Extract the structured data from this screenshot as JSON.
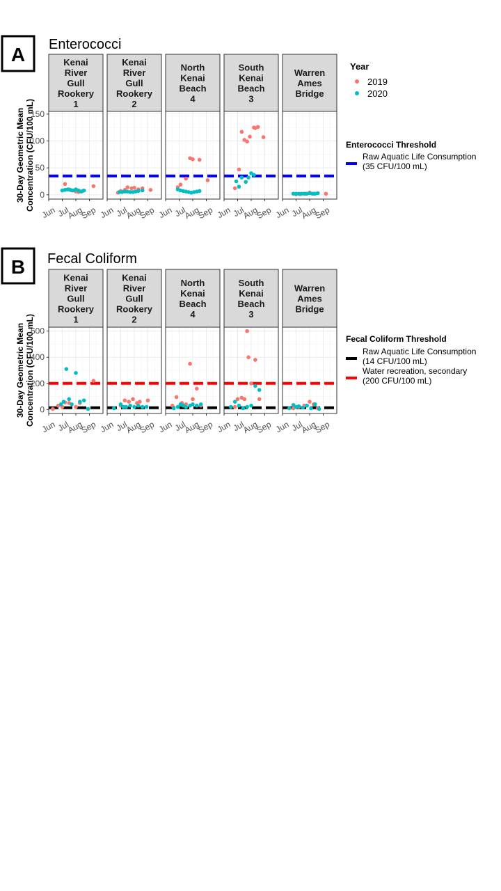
{
  "colors": {
    "y2019": "#F8766D",
    "y2020": "#00BFC4",
    "threshold_blue": "#0000FF",
    "threshold_red": "#FF0000",
    "threshold_black": "#000000",
    "strip_fill": "#D9D9D9",
    "grid": "#EBEBEB"
  },
  "y_label": [
    "30-Day Geometric Mean",
    "Concentration (CFU/100 mL)"
  ],
  "year_legend": {
    "title": "Year",
    "items": [
      {
        "label": "2019",
        "color_key": "y2019"
      },
      {
        "label": "2020",
        "color_key": "y2020"
      }
    ]
  },
  "chart_data": [
    {
      "type": "scatter",
      "badge": "A",
      "title": "Enterococci",
      "ylim": [
        -8,
        155
      ],
      "yticks": [
        0,
        50,
        100,
        150
      ],
      "xlim": [
        0,
        4
      ],
      "xticks": [
        {
          "label": "Jun",
          "x": 0
        },
        {
          "label": "Jul",
          "x": 1
        },
        {
          "label": "Aug",
          "x": 2
        },
        {
          "label": "Sep",
          "x": 3
        }
      ],
      "grid": true,
      "legend_position": "right",
      "threshold_legend": {
        "title": "Enterococci Threshold",
        "items": [
          {
            "line1": "Raw Aquatic Life Consumption",
            "line2": "(35 CFU/100 mL)",
            "value": 35,
            "color_key": "threshold_blue"
          }
        ]
      },
      "panels": [
        {
          "strip": [
            "Kenai",
            "River",
            "Gull",
            "Rookery",
            "1"
          ],
          "series": [
            {
              "name": "2019",
              "points": [
                [
                  1.2,
                  20
                ],
                [
                  1.5,
                  10
                ],
                [
                  1.7,
                  8
                ],
                [
                  2.0,
                  6
                ],
                [
                  2.2,
                  5
                ],
                [
                  2.5,
                  7
                ],
                [
                  3.3,
                  16
                ]
              ]
            },
            {
              "name": "2020",
              "points": [
                [
                  1.0,
                  8
                ],
                [
                  1.2,
                  9
                ],
                [
                  1.4,
                  10
                ],
                [
                  1.6,
                  9
                ],
                [
                  1.8,
                  8
                ],
                [
                  2.0,
                  10
                ],
                [
                  2.2,
                  8
                ],
                [
                  2.4,
                  6
                ],
                [
                  2.6,
                  8
                ]
              ]
            }
          ]
        },
        {
          "strip": [
            "Kenai",
            "River",
            "Gull",
            "Rookery",
            "2"
          ],
          "series": [
            {
              "name": "2019",
              "points": [
                [
                  0.8,
                  4
                ],
                [
                  1.0,
                  7
                ],
                [
                  1.3,
                  9
                ],
                [
                  1.5,
                  14
                ],
                [
                  1.8,
                  12
                ],
                [
                  2.0,
                  13
                ],
                [
                  2.3,
                  10
                ],
                [
                  2.6,
                  12
                ],
                [
                  3.2,
                  9
                ]
              ]
            },
            {
              "name": "2020",
              "points": [
                [
                  0.9,
                  5
                ],
                [
                  1.1,
                  5
                ],
                [
                  1.3,
                  6
                ],
                [
                  1.5,
                  6
                ],
                [
                  1.7,
                  5
                ],
                [
                  1.9,
                  5
                ],
                [
                  2.1,
                  6
                ],
                [
                  2.3,
                  7
                ],
                [
                  2.6,
                  8
                ]
              ]
            }
          ]
        },
        {
          "strip": [
            "North",
            "Kenai",
            "Beach",
            "4"
          ],
          "series": [
            {
              "name": "2019",
              "points": [
                [
                  0.9,
                  14
                ],
                [
                  1.1,
                  19
                ],
                [
                  1.5,
                  30
                ],
                [
                  1.8,
                  68
                ],
                [
                  2.0,
                  66
                ],
                [
                  2.5,
                  65
                ],
                [
                  3.1,
                  27
                ]
              ]
            },
            {
              "name": "2020",
              "points": [
                [
                  0.9,
                  10
                ],
                [
                  1.1,
                  8
                ],
                [
                  1.3,
                  7
                ],
                [
                  1.5,
                  6
                ],
                [
                  1.7,
                  5
                ],
                [
                  1.9,
                  4
                ],
                [
                  2.1,
                  5
                ],
                [
                  2.3,
                  6
                ],
                [
                  2.5,
                  7
                ]
              ]
            }
          ]
        },
        {
          "strip": [
            "South",
            "Kenai",
            "Beach",
            "3"
          ],
          "series": [
            {
              "name": "2019",
              "points": [
                [
                  0.8,
                  12
                ],
                [
                  1.1,
                  47
                ],
                [
                  1.3,
                  117
                ],
                [
                  1.5,
                  102
                ],
                [
                  1.7,
                  99
                ],
                [
                  1.9,
                  108
                ],
                [
                  2.2,
                  125
                ],
                [
                  2.3,
                  124
                ],
                [
                  2.5,
                  126
                ],
                [
                  2.9,
                  107
                ]
              ]
            },
            {
              "name": "2020",
              "points": [
                [
                  0.9,
                  25
                ],
                [
                  1.1,
                  15
                ],
                [
                  1.3,
                  32
                ],
                [
                  1.6,
                  24
                ],
                [
                  1.8,
                  32
                ],
                [
                  2.0,
                  40
                ],
                [
                  2.2,
                  37
                ]
              ]
            }
          ]
        },
        {
          "strip": [
            "Warren",
            "Ames",
            "Bridge"
          ],
          "series": [
            {
              "name": "2019",
              "points": [
                [
                  1.0,
                  1
                ],
                [
                  1.3,
                  1
                ],
                [
                  1.7,
                  2
                ],
                [
                  2.0,
                  4
                ],
                [
                  2.3,
                  2
                ],
                [
                  3.2,
                  2
                ]
              ]
            },
            {
              "name": "2020",
              "points": [
                [
                  0.8,
                  2
                ],
                [
                  1.0,
                  2
                ],
                [
                  1.2,
                  2
                ],
                [
                  1.4,
                  2
                ],
                [
                  1.6,
                  2
                ],
                [
                  1.8,
                  2
                ],
                [
                  2.0,
                  3
                ],
                [
                  2.2,
                  2
                ],
                [
                  2.4,
                  2
                ],
                [
                  2.6,
                  3
                ]
              ]
            }
          ]
        }
      ]
    },
    {
      "type": "scatter",
      "badge": "B",
      "title": "Fecal Coliform",
      "ylim": [
        -30,
        630
      ],
      "yticks": [
        0,
        200,
        400,
        600
      ],
      "xlim": [
        0,
        4
      ],
      "xticks": [
        {
          "label": "Jun",
          "x": 0
        },
        {
          "label": "Jul",
          "x": 1
        },
        {
          "label": "Aug",
          "x": 2
        },
        {
          "label": "Sep",
          "x": 3
        }
      ],
      "grid": true,
      "legend_position": "right",
      "threshold_legend": {
        "title": "Fecal Coliform Threshold",
        "items": [
          {
            "line1": "Raw Aquatic Life Consumption",
            "line2": "(14 CFU/100 mL)",
            "value": 14,
            "color_key": "threshold_black"
          },
          {
            "line1": "Water recreation, secondary",
            "line2": "(200 CFU/100 mL)",
            "value": 200,
            "color_key": "threshold_red"
          }
        ]
      },
      "panels": [
        {
          "strip": [
            "Kenai",
            "River",
            "Gull",
            "Rookery",
            "1"
          ],
          "series": [
            {
              "name": "2019",
              "points": [
                [
                  0.3,
                  5
                ],
                [
                  0.7,
                  30
                ],
                [
                  1.0,
                  20
                ],
                [
                  1.2,
                  55
                ],
                [
                  1.5,
                  50
                ],
                [
                  2.0,
                  20
                ],
                [
                  2.3,
                  50
                ],
                [
                  3.3,
                  220
                ]
              ]
            },
            {
              "name": "2020",
              "points": [
                [
                  0.9,
                  40
                ],
                [
                  1.1,
                  60
                ],
                [
                  1.3,
                  310
                ],
                [
                  1.5,
                  80
                ],
                [
                  1.7,
                  40
                ],
                [
                  2.0,
                  280
                ],
                [
                  2.3,
                  60
                ],
                [
                  2.6,
                  70
                ],
                [
                  2.9,
                  5
                ]
              ]
            }
          ]
        },
        {
          "strip": [
            "Kenai",
            "River",
            "Gull",
            "Rookery",
            "2"
          ],
          "series": [
            {
              "name": "2019",
              "points": [
                [
                  1.0,
                  30
                ],
                [
                  1.3,
                  70
                ],
                [
                  1.6,
                  60
                ],
                [
                  1.9,
                  80
                ],
                [
                  2.2,
                  50
                ],
                [
                  2.4,
                  60
                ],
                [
                  3.0,
                  70
                ]
              ]
            },
            {
              "name": "2020",
              "points": [
                [
                  0.5,
                  10
                ],
                [
                  1.0,
                  40
                ],
                [
                  1.2,
                  20
                ],
                [
                  1.4,
                  20
                ],
                [
                  1.7,
                  30
                ],
                [
                  2.0,
                  20
                ],
                [
                  2.3,
                  30
                ],
                [
                  2.6,
                  20
                ],
                [
                  2.9,
                  20
                ]
              ]
            }
          ]
        },
        {
          "strip": [
            "North",
            "Kenai",
            "Beach",
            "4"
          ],
          "series": [
            {
              "name": "2019",
              "points": [
                [
                  0.5,
                  30
                ],
                [
                  0.8,
                  95
                ],
                [
                  1.2,
                  50
                ],
                [
                  1.5,
                  40
                ],
                [
                  1.8,
                  350
                ],
                [
                  2.0,
                  80
                ],
                [
                  2.3,
                  160
                ],
                [
                  2.6,
                  30
                ]
              ]
            },
            {
              "name": "2020",
              "points": [
                [
                  0.6,
                  10
                ],
                [
                  0.9,
                  20
                ],
                [
                  1.1,
                  40
                ],
                [
                  1.3,
                  30
                ],
                [
                  1.5,
                  20
                ],
                [
                  1.8,
                  30
                ],
                [
                  2.0,
                  40
                ],
                [
                  2.3,
                  30
                ],
                [
                  2.6,
                  40
                ]
              ]
            }
          ]
        },
        {
          "strip": [
            "South",
            "Kenai",
            "Beach",
            "3"
          ],
          "series": [
            {
              "name": "2019",
              "points": [
                [
                  0.8,
                  20
                ],
                [
                  1.0,
                  80
                ],
                [
                  1.3,
                  90
                ],
                [
                  1.5,
                  80
                ],
                [
                  1.7,
                  600
                ],
                [
                  1.8,
                  400
                ],
                [
                  2.0,
                  200
                ],
                [
                  2.3,
                  380
                ],
                [
                  2.6,
                  80
                ]
              ]
            },
            {
              "name": "2020",
              "points": [
                [
                  0.5,
                  20
                ],
                [
                  0.8,
                  60
                ],
                [
                  1.1,
                  30
                ],
                [
                  1.4,
                  10
                ],
                [
                  1.7,
                  20
                ],
                [
                  2.0,
                  30
                ],
                [
                  2.3,
                  180
                ],
                [
                  2.6,
                  150
                ]
              ]
            }
          ]
        },
        {
          "strip": [
            "Warren",
            "Ames",
            "Bridge"
          ],
          "series": [
            {
              "name": "2019",
              "points": [
                [
                  0.8,
                  10
                ],
                [
                  1.2,
                  20
                ],
                [
                  1.6,
                  30
                ],
                [
                  2.0,
                  60
                ],
                [
                  2.3,
                  40
                ],
                [
                  2.6,
                  10
                ]
              ]
            },
            {
              "name": "2020",
              "points": [
                [
                  0.5,
                  10
                ],
                [
                  0.8,
                  35
                ],
                [
                  1.0,
                  20
                ],
                [
                  1.2,
                  25
                ],
                [
                  1.5,
                  15
                ],
                [
                  1.8,
                  30
                ],
                [
                  2.1,
                  10
                ],
                [
                  2.4,
                  40
                ],
                [
                  2.7,
                  5
                ]
              ]
            }
          ]
        }
      ]
    }
  ]
}
